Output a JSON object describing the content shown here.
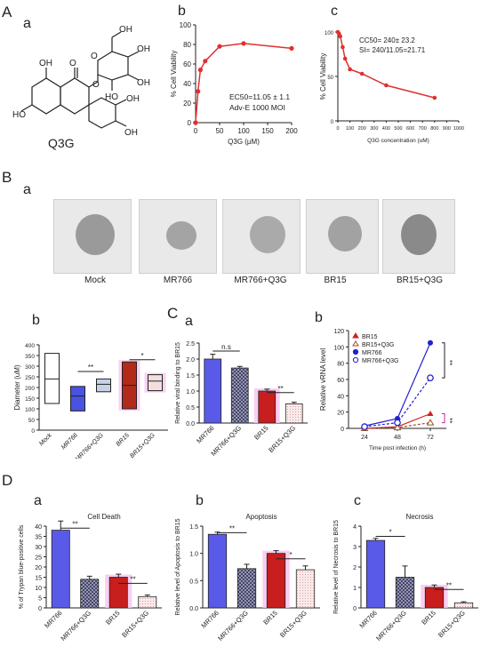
{
  "panel_labels": {
    "A": "A",
    "Aa": "a",
    "Ab": "b",
    "Ac": "c",
    "B": "B",
    "Ba": "a",
    "Bb": "b",
    "C": "C",
    "Ca": "a",
    "Cb": "b",
    "D": "D",
    "Da": "a",
    "Db": "b",
    "Dc": "c"
  },
  "molecule": {
    "name": "Q3G",
    "atoms": {
      "OH_top": "OH",
      "OH_ring": "OH",
      "OH_ring2": "OH",
      "OH_sugar": "OH",
      "OH_phenyl": "OH",
      "OH_left": "OH",
      "OH_left2": "HO",
      "O1": "O",
      "O2": "O",
      "O3": "O",
      "HO_bottom": "HO",
      "OH_bottom": "OH",
      "OH_top2": "OH"
    }
  },
  "micrographs": {
    "labels": [
      "Mock",
      "MR766",
      "MR766+Q3G",
      "BR15",
      "BR15+Q3G"
    ]
  },
  "chart_data": [
    {
      "id": "Ab",
      "type": "line",
      "ylabel": "% Cell Viability",
      "xlabel": "Q3G (μM)",
      "xlim": [
        0,
        200
      ],
      "ylim": [
        0,
        100
      ],
      "xticks": [
        0,
        50,
        100,
        150,
        200
      ],
      "yticks": [
        0,
        20,
        40,
        60,
        80,
        100
      ],
      "x": [
        0,
        5,
        10,
        20,
        50,
        100,
        200
      ],
      "y": [
        0,
        32,
        54,
        63,
        78,
        81,
        76
      ],
      "color": "#e03030",
      "annotation": [
        "EC50=11.05 ± 1.1",
        "Adv-E 1000 MOI"
      ]
    },
    {
      "id": "Ac",
      "type": "line",
      "ylabel": "% Cell Viability",
      "xlabel": "Q3G concentration (uM)",
      "xlim": [
        0,
        1000
      ],
      "ylim": [
        0,
        100
      ],
      "xticks": [
        0,
        100,
        200,
        300,
        400,
        500,
        600,
        700,
        800,
        900,
        1000
      ],
      "yticks": [
        0,
        50,
        100
      ],
      "x": [
        0,
        10,
        20,
        40,
        60,
        100,
        200,
        400,
        800
      ],
      "y": [
        100,
        98,
        95,
        83,
        70,
        58,
        53,
        40,
        26
      ],
      "color": "#e03030",
      "annotation": [
        "CC50= 240± 23.2",
        "SI= 240/11.05=21.71"
      ]
    },
    {
      "id": "Bb",
      "type": "bar",
      "ylabel": "Diameter (uM)",
      "ylim": [
        0,
        400
      ],
      "yticks": [
        0,
        50,
        100,
        150,
        200,
        250,
        300,
        350,
        400
      ],
      "categories": [
        "Mock",
        "MR766",
        "MR766+Q3G",
        "BR15",
        "BR15+Q3G"
      ],
      "low": [
        125,
        90,
        180,
        100,
        185
      ],
      "high": [
        360,
        205,
        240,
        320,
        260
      ],
      "mid": [
        240,
        160,
        215,
        210,
        230
      ],
      "significance": [
        "**",
        "*"
      ]
    },
    {
      "id": "Ca",
      "type": "bar",
      "ylabel": "Relative viral binding to BR15",
      "ylim": [
        0,
        2.5
      ],
      "yticks": [
        0,
        0.5,
        1.0,
        1.5,
        2.0,
        2.5
      ],
      "categories": [
        "MR766",
        "MR766+Q3G",
        "BR15",
        "BR15+Q3G"
      ],
      "values": [
        2.0,
        1.72,
        1.0,
        0.6
      ],
      "errors": [
        0.15,
        0.05,
        0.06,
        0.05
      ],
      "significance": [
        "n.s",
        "**"
      ]
    },
    {
      "id": "Cb",
      "type": "line",
      "ylabel": "Relative vRNA level",
      "xlabel": "Time post infection (h)",
      "xticks": [
        24,
        48,
        72
      ],
      "ylim": [
        0,
        120
      ],
      "yticks": [
        0,
        20,
        40,
        60,
        80,
        100,
        120
      ],
      "series": [
        {
          "name": "BR15",
          "values": [
            0,
            2,
            18
          ],
          "color": "#d02020"
        },
        {
          "name": "BR15+Q3G",
          "values": [
            0,
            1,
            7
          ],
          "color": "#a05020"
        },
        {
          "name": "MR766",
          "values": [
            3,
            12,
            105
          ],
          "color": "#2020d0"
        },
        {
          "name": "MR766+Q3G",
          "values": [
            2,
            7,
            62
          ],
          "color": "#2020d0"
        }
      ],
      "significance": [
        "**",
        "**"
      ]
    },
    {
      "id": "Da",
      "type": "bar",
      "title": "Cell Death",
      "ylabel": "% of Trypan blue-positive cells",
      "ylim": [
        0,
        40
      ],
      "yticks": [
        0,
        5,
        10,
        15,
        20,
        25,
        30,
        35,
        40
      ],
      "categories": [
        "MR766",
        "MR766+Q3G",
        "BR15",
        "BR15+Q3G"
      ],
      "values": [
        38,
        14,
        15,
        5.5
      ],
      "errors": [
        4.5,
        1.5,
        1.5,
        0.8
      ],
      "significance": [
        "**",
        "**"
      ]
    },
    {
      "id": "Db",
      "type": "bar",
      "title": "Apoptosis",
      "ylabel": "Relative level of Apoptosis to BR15",
      "ylim": [
        0,
        1.5
      ],
      "yticks": [
        0,
        0.5,
        1.0,
        1.5
      ],
      "categories": [
        "MR766",
        "MR766+Q3G",
        "BR15",
        "BR15+Q3G"
      ],
      "values": [
        1.35,
        0.72,
        1.0,
        0.7
      ],
      "errors": [
        0.04,
        0.08,
        0.05,
        0.07
      ],
      "significance": [
        "**",
        "*"
      ]
    },
    {
      "id": "Dc",
      "type": "bar",
      "title": "Necrosis",
      "ylabel": "Relative level of Necrosis to BR15",
      "ylim": [
        0,
        4
      ],
      "yticks": [
        0,
        1,
        2,
        3,
        4
      ],
      "categories": [
        "MR766",
        "MR766+Q3G",
        "BR15",
        "BR15+Q3G"
      ],
      "values": [
        3.3,
        1.5,
        1.0,
        0.25
      ],
      "errors": [
        0.1,
        0.55,
        0.12,
        0.05
      ],
      "significance": [
        "*",
        "**"
      ]
    }
  ]
}
